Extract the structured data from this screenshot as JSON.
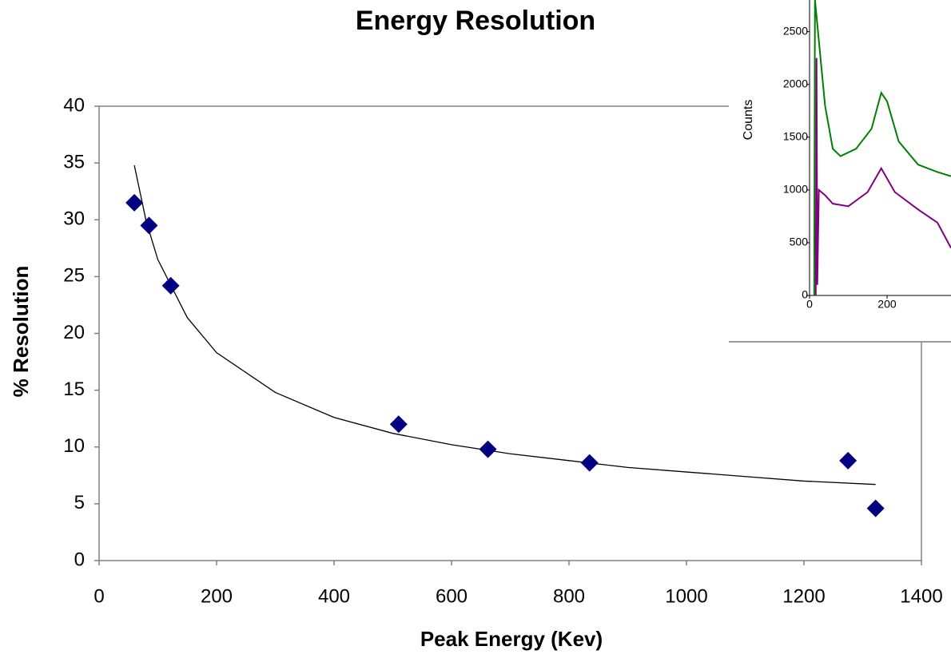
{
  "chart_data": [
    {
      "type": "scatter",
      "title": "Energy Resolution",
      "x_label": "Peak Energy (Kev)",
      "y_label": "% Resolution",
      "xlim": [
        0,
        1400
      ],
      "xticks": [
        0,
        200,
        400,
        600,
        800,
        1000,
        1200,
        1400
      ],
      "ylim": [
        0,
        40
      ],
      "yticks": [
        0,
        5,
        10,
        15,
        20,
        25,
        30,
        35,
        40
      ],
      "points": {
        "color": "#000080",
        "marker": "diamond",
        "x": [
          60,
          85,
          122,
          510,
          662,
          835,
          1275,
          1322
        ],
        "y": [
          31.5,
          29.5,
          24.2,
          12,
          9.8,
          8.6,
          8.8,
          4.6
        ]
      },
      "trendline": {
        "color": "#000000",
        "x": [
          60,
          80,
          100,
          150,
          200,
          300,
          400,
          500,
          600,
          700,
          800,
          900,
          1000,
          1100,
          1200,
          1322
        ],
        "y": [
          34.8,
          29.9,
          26.5,
          21.4,
          18.3,
          14.8,
          12.6,
          11.2,
          10.2,
          9.4,
          8.8,
          8.2,
          7.8,
          7.4,
          7.0,
          6.7
        ]
      }
    },
    {
      "type": "line",
      "y_label": "Counts",
      "xlim": [
        0,
        365
      ],
      "xticks": [
        0,
        200
      ],
      "ylim": [
        0,
        2800
      ],
      "yticks": [
        0,
        500,
        1000,
        1500,
        2000,
        2500
      ],
      "series": [
        {
          "color": "#008000",
          "x": [
            12,
            14,
            40,
            60,
            80,
            120,
            160,
            185,
            200,
            230,
            280,
            330,
            365
          ],
          "values": [
            0,
            2800,
            1800,
            1390,
            1320,
            1390,
            1580,
            1920,
            1840,
            1460,
            1240,
            1170,
            1130
          ]
        },
        {
          "color": "#800080",
          "x": [
            16,
            18,
            20,
            24,
            40,
            60,
            100,
            150,
            185,
            220,
            280,
            330,
            365
          ],
          "values": [
            0,
            2250,
            100,
            1000,
            950,
            870,
            845,
            980,
            1205,
            980,
            815,
            690,
            450
          ]
        }
      ]
    }
  ]
}
